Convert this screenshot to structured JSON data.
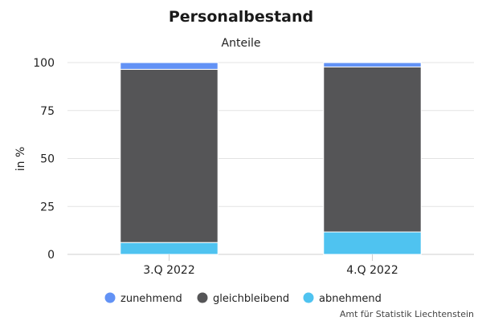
{
  "chart_data": {
    "type": "bar",
    "stacked": true,
    "title": "Personalbestand",
    "subtitle": "Anteile",
    "xlabel": "",
    "ylabel": "in %",
    "ylim": [
      0,
      100
    ],
    "yticks": [
      0,
      25,
      50,
      75,
      100
    ],
    "grid": true,
    "legend_position": "bottom",
    "categories": [
      "3.Q 2022",
      "4.Q 2022"
    ],
    "series": [
      {
        "name": "abnehmend",
        "color": "#4fc3f0",
        "values": [
          6.2,
          11.7
        ]
      },
      {
        "name": "gleichbleibend",
        "color": "#555557",
        "values": [
          90.3,
          86.0
        ]
      },
      {
        "name": "zunehmend",
        "color": "#6292f5",
        "values": [
          3.5,
          2.3
        ]
      }
    ],
    "legend_order": [
      "zunehmend",
      "gleichbleibend",
      "abnehmend"
    ]
  },
  "credit": "Amt für Statistik Liechtenstein"
}
